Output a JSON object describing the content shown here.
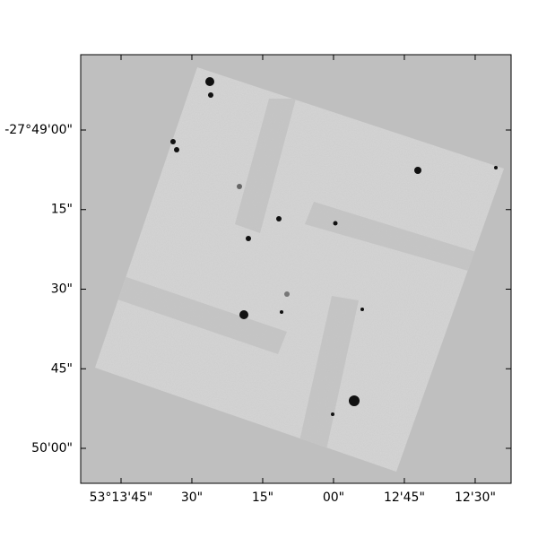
{
  "chart_data": {
    "type": "image",
    "xlim": [
      53.23154,
      53.20622
    ],
    "ylim": [
      -27.835164,
      -27.812723
    ],
    "xticks": [
      {
        "value": 53.229167,
        "label": "53°13'45\""
      },
      {
        "value": 53.225,
        "label": "30\""
      },
      {
        "value": 53.220833,
        "label": "15\""
      },
      {
        "value": 53.216667,
        "label": "00\""
      },
      {
        "value": 53.2125,
        "label": "12'45\""
      },
      {
        "value": 53.208333,
        "label": "12'30\""
      }
    ],
    "yticks": [
      {
        "value": -27.816667,
        "label": "-27°49'00\""
      },
      {
        "value": -27.820833,
        "label": "15\""
      },
      {
        "value": -27.825,
        "label": "30\""
      },
      {
        "value": -27.829167,
        "label": "45\""
      },
      {
        "value": -27.833333,
        "label": "50'00\""
      }
    ]
  }
}
